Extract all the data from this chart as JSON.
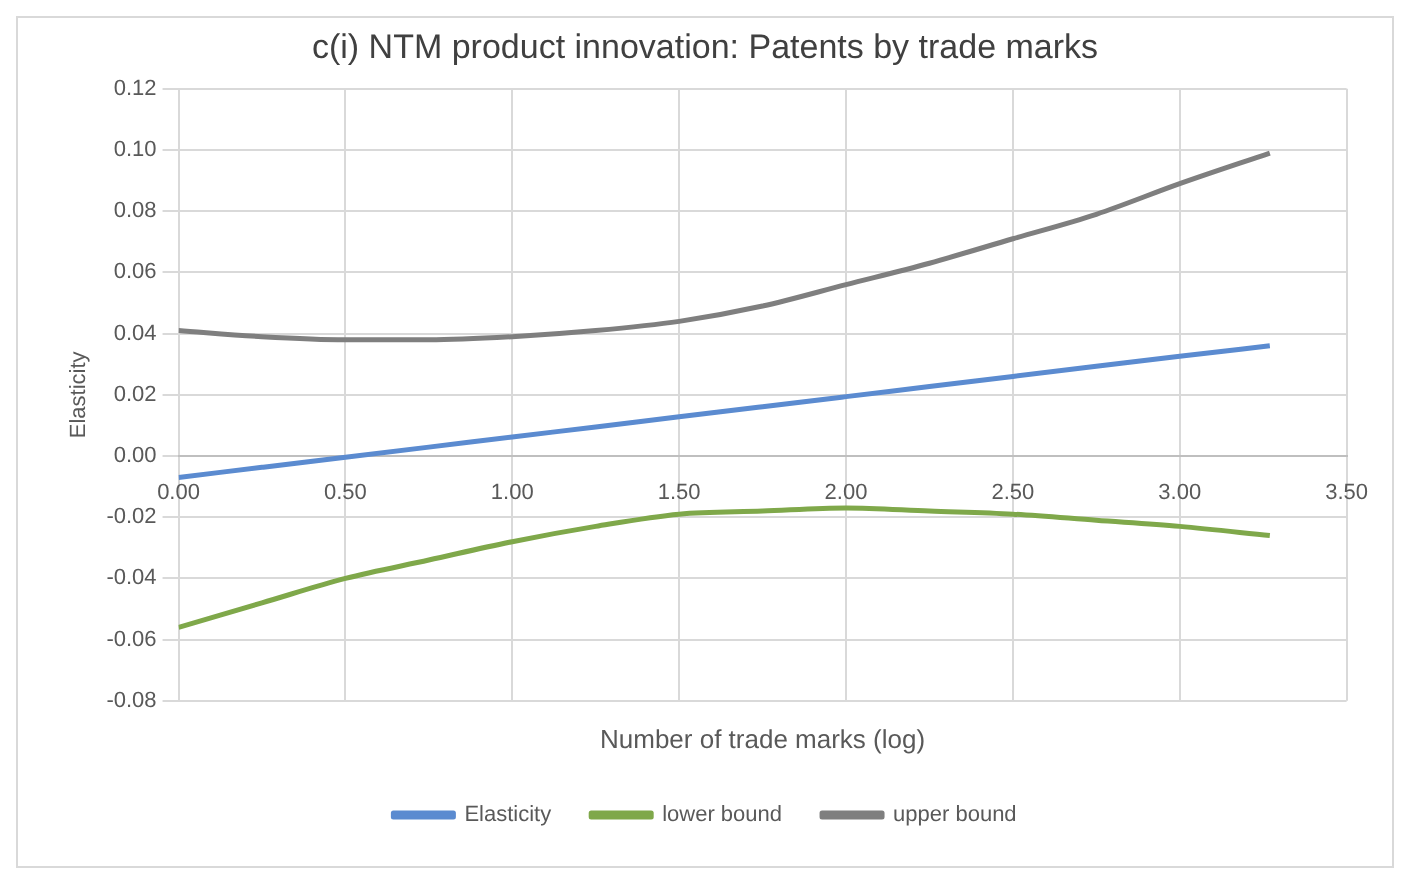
{
  "chart_data": {
    "type": "line",
    "title": "c(i) NTM product innovation: Patents by trade marks",
    "xlabel": "Number of trade marks (log)",
    "ylabel": "Elasticity",
    "x": [
      0,
      0.25,
      0.5,
      0.75,
      1,
      1.25,
      1.5,
      1.75,
      2,
      2.25,
      2.5,
      2.75,
      3,
      3.27
    ],
    "series": [
      {
        "name": "Elasticity",
        "color": "#5b8bd0",
        "values": [
          -0.007,
          -0.0037,
          -0.0004,
          0.0029,
          0.0062,
          0.0095,
          0.0128,
          0.0161,
          0.0194,
          0.0227,
          0.026,
          0.0293,
          0.0326,
          0.036
        ]
      },
      {
        "name": "lower bound",
        "color": "#7fa84a",
        "values": [
          -0.056,
          -0.048,
          -0.04,
          -0.034,
          -0.028,
          -0.023,
          -0.019,
          -0.018,
          -0.017,
          -0.018,
          -0.019,
          -0.021,
          -0.023,
          -0.026
        ]
      },
      {
        "name": "upper bound",
        "color": "#7f7f7f",
        "values": [
          0.041,
          0.039,
          0.038,
          0.038,
          0.039,
          0.041,
          0.044,
          0.049,
          0.056,
          0.063,
          0.071,
          0.079,
          0.089,
          0.099
        ]
      }
    ],
    "xlim": [
      0,
      3.5
    ],
    "xticks": [
      {
        "value": 0,
        "label": "0.00"
      },
      {
        "value": 0.5,
        "label": "0.50"
      },
      {
        "value": 1,
        "label": "1.00"
      },
      {
        "value": 1.5,
        "label": "1.50"
      },
      {
        "value": 2,
        "label": "2.00"
      },
      {
        "value": 2.5,
        "label": "2.50"
      },
      {
        "value": 3,
        "label": "3.00"
      },
      {
        "value": 3.5,
        "label": "3.50"
      }
    ],
    "ylim": [
      -0.08,
      0.12
    ],
    "yticks": [
      {
        "value": -0.08,
        "label": "-0.08"
      },
      {
        "value": -0.06,
        "label": "-0.06"
      },
      {
        "value": -0.04,
        "label": "-0.04"
      },
      {
        "value": -0.02,
        "label": "-0.02"
      },
      {
        "value": 0,
        "label": "0.00"
      },
      {
        "value": 0.02,
        "label": "0.02"
      },
      {
        "value": 0.04,
        "label": "0.04"
      },
      {
        "value": 0.06,
        "label": "0.06"
      },
      {
        "value": 0.08,
        "label": "0.08"
      },
      {
        "value": 0.1,
        "label": "0.10"
      },
      {
        "value": 0.12,
        "label": "0.12"
      }
    ],
    "grid": true,
    "legend": "bottom",
    "marker": "none",
    "line_style": "solid"
  }
}
